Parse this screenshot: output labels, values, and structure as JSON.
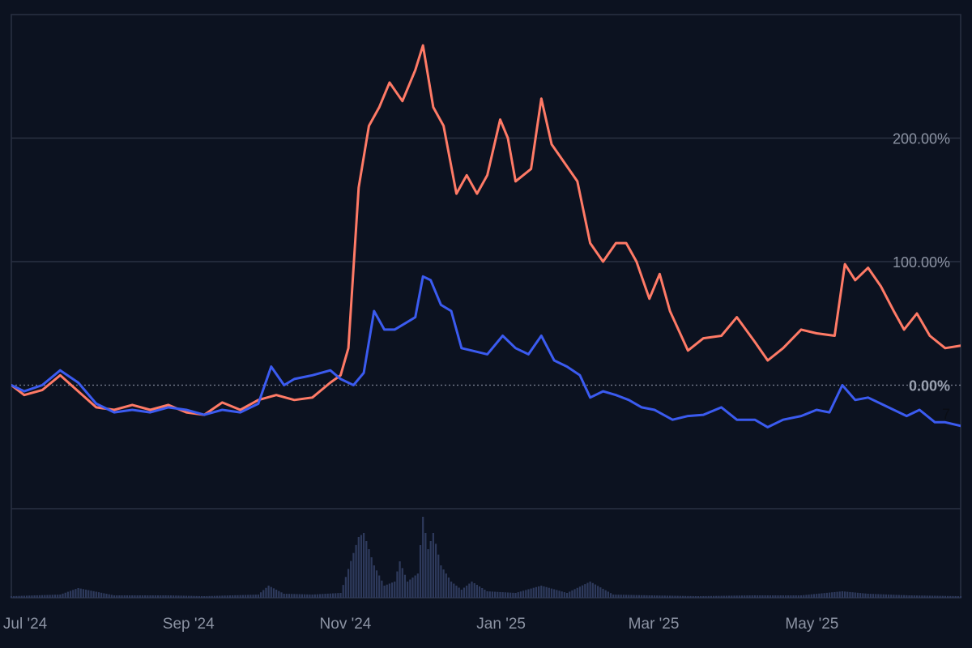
{
  "chart_data": {
    "type": "line",
    "x_axis": {
      "type": "date",
      "range": [
        "2024-06-26",
        "2025-06-30"
      ]
    },
    "x_ticks": [
      {
        "label": "Jul '24",
        "date": "2024-07-01"
      },
      {
        "label": "Sep '24",
        "date": "2024-09-01"
      },
      {
        "label": "Nov '24",
        "date": "2024-11-01"
      },
      {
        "label": "Jan '25",
        "date": "2025-01-01"
      },
      {
        "label": "Mar '25",
        "date": "2025-03-01"
      },
      {
        "label": "May '25",
        "date": "2025-05-01"
      }
    ],
    "y_axis": {
      "unit": "%",
      "range": [
        -100,
        300
      ]
    },
    "y_ticks": [
      {
        "label": "200.00%",
        "value": 200
      },
      {
        "label": "100.00%",
        "value": 100
      }
    ],
    "zero_line": {
      "label": "0.00%",
      "value": 0
    },
    "current_marker": "7",
    "grid": true,
    "legend": "none",
    "series": [
      {
        "color": "#ff7a66",
        "points": [
          [
            "2024-06-26",
            0
          ],
          [
            "2024-07-01",
            -8
          ],
          [
            "2024-07-08",
            -4
          ],
          [
            "2024-07-15",
            8
          ],
          [
            "2024-07-22",
            -5
          ],
          [
            "2024-07-29",
            -18
          ],
          [
            "2024-08-05",
            -20
          ],
          [
            "2024-08-12",
            -16
          ],
          [
            "2024-08-19",
            -20
          ],
          [
            "2024-08-26",
            -16
          ],
          [
            "2024-09-02",
            -22
          ],
          [
            "2024-09-09",
            -24
          ],
          [
            "2024-09-16",
            -14
          ],
          [
            "2024-09-23",
            -20
          ],
          [
            "2024-09-30",
            -12
          ],
          [
            "2024-10-07",
            -8
          ],
          [
            "2024-10-14",
            -12
          ],
          [
            "2024-10-21",
            -10
          ],
          [
            "2024-10-28",
            2
          ],
          [
            "2024-11-01",
            8
          ],
          [
            "2024-11-04",
            30
          ],
          [
            "2024-11-08",
            160
          ],
          [
            "2024-11-12",
            210
          ],
          [
            "2024-11-16",
            225
          ],
          [
            "2024-11-20",
            245
          ],
          [
            "2024-11-25",
            230
          ],
          [
            "2024-11-30",
            255
          ],
          [
            "2024-12-03",
            275
          ],
          [
            "2024-12-07",
            225
          ],
          [
            "2024-12-11",
            210
          ],
          [
            "2024-12-16",
            155
          ],
          [
            "2024-12-20",
            170
          ],
          [
            "2024-12-24",
            155
          ],
          [
            "2024-12-28",
            170
          ],
          [
            "2025-01-02",
            215
          ],
          [
            "2025-01-05",
            200
          ],
          [
            "2025-01-08",
            165
          ],
          [
            "2025-01-14",
            175
          ],
          [
            "2025-01-18",
            232
          ],
          [
            "2025-01-22",
            195
          ],
          [
            "2025-01-27",
            180
          ],
          [
            "2025-02-01",
            165
          ],
          [
            "2025-02-06",
            115
          ],
          [
            "2025-02-11",
            100
          ],
          [
            "2025-02-16",
            115
          ],
          [
            "2025-02-20",
            115
          ],
          [
            "2025-02-24",
            100
          ],
          [
            "2025-03-01",
            70
          ],
          [
            "2025-03-05",
            90
          ],
          [
            "2025-03-09",
            60
          ],
          [
            "2025-03-16",
            28
          ],
          [
            "2025-03-22",
            38
          ],
          [
            "2025-03-29",
            40
          ],
          [
            "2025-04-04",
            55
          ],
          [
            "2025-04-11",
            35
          ],
          [
            "2025-04-16",
            20
          ],
          [
            "2025-04-22",
            30
          ],
          [
            "2025-04-29",
            45
          ],
          [
            "2025-05-05",
            42
          ],
          [
            "2025-05-12",
            40
          ],
          [
            "2025-05-16",
            98
          ],
          [
            "2025-05-20",
            85
          ],
          [
            "2025-05-25",
            95
          ],
          [
            "2025-05-30",
            80
          ],
          [
            "2025-06-04",
            60
          ],
          [
            "2025-06-08",
            45
          ],
          [
            "2025-06-13",
            58
          ],
          [
            "2025-06-18",
            40
          ],
          [
            "2025-06-24",
            30
          ],
          [
            "2025-06-30",
            32
          ]
        ]
      },
      {
        "color": "#3b5bf0",
        "points": [
          [
            "2024-06-26",
            0
          ],
          [
            "2024-07-01",
            -5
          ],
          [
            "2024-07-08",
            0
          ],
          [
            "2024-07-15",
            12
          ],
          [
            "2024-07-22",
            2
          ],
          [
            "2024-07-29",
            -15
          ],
          [
            "2024-08-05",
            -22
          ],
          [
            "2024-08-12",
            -20
          ],
          [
            "2024-08-19",
            -22
          ],
          [
            "2024-08-26",
            -18
          ],
          [
            "2024-09-02",
            -20
          ],
          [
            "2024-09-09",
            -24
          ],
          [
            "2024-09-16",
            -20
          ],
          [
            "2024-09-23",
            -22
          ],
          [
            "2024-09-30",
            -15
          ],
          [
            "2024-10-05",
            15
          ],
          [
            "2024-10-10",
            0
          ],
          [
            "2024-10-14",
            5
          ],
          [
            "2024-10-21",
            8
          ],
          [
            "2024-10-28",
            12
          ],
          [
            "2024-11-01",
            5
          ],
          [
            "2024-11-06",
            0
          ],
          [
            "2024-11-10",
            10
          ],
          [
            "2024-11-14",
            60
          ],
          [
            "2024-11-18",
            45
          ],
          [
            "2024-11-22",
            45
          ],
          [
            "2024-11-26",
            50
          ],
          [
            "2024-11-30",
            55
          ],
          [
            "2024-12-03",
            88
          ],
          [
            "2024-12-06",
            85
          ],
          [
            "2024-12-10",
            65
          ],
          [
            "2024-12-14",
            60
          ],
          [
            "2024-12-18",
            30
          ],
          [
            "2024-12-22",
            28
          ],
          [
            "2024-12-28",
            25
          ],
          [
            "2025-01-03",
            40
          ],
          [
            "2025-01-08",
            30
          ],
          [
            "2025-01-13",
            25
          ],
          [
            "2025-01-18",
            40
          ],
          [
            "2025-01-23",
            20
          ],
          [
            "2025-01-28",
            15
          ],
          [
            "2025-02-02",
            8
          ],
          [
            "2025-02-06",
            -10
          ],
          [
            "2025-02-11",
            -5
          ],
          [
            "2025-02-16",
            -8
          ],
          [
            "2025-02-21",
            -12
          ],
          [
            "2025-02-26",
            -18
          ],
          [
            "2025-03-03",
            -20
          ],
          [
            "2025-03-10",
            -28
          ],
          [
            "2025-03-16",
            -25
          ],
          [
            "2025-03-22",
            -24
          ],
          [
            "2025-03-29",
            -18
          ],
          [
            "2025-04-04",
            -28
          ],
          [
            "2025-04-11",
            -28
          ],
          [
            "2025-04-16",
            -34
          ],
          [
            "2025-04-22",
            -28
          ],
          [
            "2025-04-29",
            -25
          ],
          [
            "2025-05-05",
            -20
          ],
          [
            "2025-05-10",
            -22
          ],
          [
            "2025-05-15",
            0
          ],
          [
            "2025-05-20",
            -12
          ],
          [
            "2025-05-25",
            -10
          ],
          [
            "2025-05-30",
            -15
          ],
          [
            "2025-06-04",
            -20
          ],
          [
            "2025-06-09",
            -25
          ],
          [
            "2025-06-14",
            -20
          ],
          [
            "2025-06-20",
            -30
          ],
          [
            "2025-06-24",
            -30
          ],
          [
            "2025-06-30",
            -33
          ]
        ]
      }
    ],
    "volume": {
      "color": "#2e3a5c",
      "range": [
        0,
        100
      ],
      "points": [
        [
          "2024-06-26",
          2
        ],
        [
          "2024-07-15",
          4
        ],
        [
          "2024-07-22",
          12
        ],
        [
          "2024-08-05",
          3
        ],
        [
          "2024-08-26",
          3
        ],
        [
          "2024-09-09",
          2
        ],
        [
          "2024-09-30",
          4
        ],
        [
          "2024-10-04",
          15
        ],
        [
          "2024-10-10",
          5
        ],
        [
          "2024-10-21",
          4
        ],
        [
          "2024-11-01",
          6
        ],
        [
          "2024-11-08",
          75
        ],
        [
          "2024-11-10",
          80
        ],
        [
          "2024-11-12",
          60
        ],
        [
          "2024-11-14",
          40
        ],
        [
          "2024-11-18",
          15
        ],
        [
          "2024-11-22",
          20
        ],
        [
          "2024-11-24",
          45
        ],
        [
          "2024-11-27",
          20
        ],
        [
          "2024-12-01",
          30
        ],
        [
          "2024-12-03",
          100
        ],
        [
          "2024-12-05",
          60
        ],
        [
          "2024-12-07",
          80
        ],
        [
          "2024-12-10",
          40
        ],
        [
          "2024-12-14",
          20
        ],
        [
          "2024-12-18",
          10
        ],
        [
          "2024-12-22",
          20
        ],
        [
          "2024-12-28",
          8
        ],
        [
          "2025-01-08",
          6
        ],
        [
          "2025-01-18",
          15
        ],
        [
          "2025-01-28",
          6
        ],
        [
          "2025-02-06",
          20
        ],
        [
          "2025-02-15",
          4
        ],
        [
          "2025-03-01",
          3
        ],
        [
          "2025-03-20",
          2
        ],
        [
          "2025-04-10",
          3
        ],
        [
          "2025-04-29",
          3
        ],
        [
          "2025-05-15",
          8
        ],
        [
          "2025-05-25",
          5
        ],
        [
          "2025-06-10",
          3
        ],
        [
          "2025-06-30",
          2
        ]
      ]
    }
  }
}
